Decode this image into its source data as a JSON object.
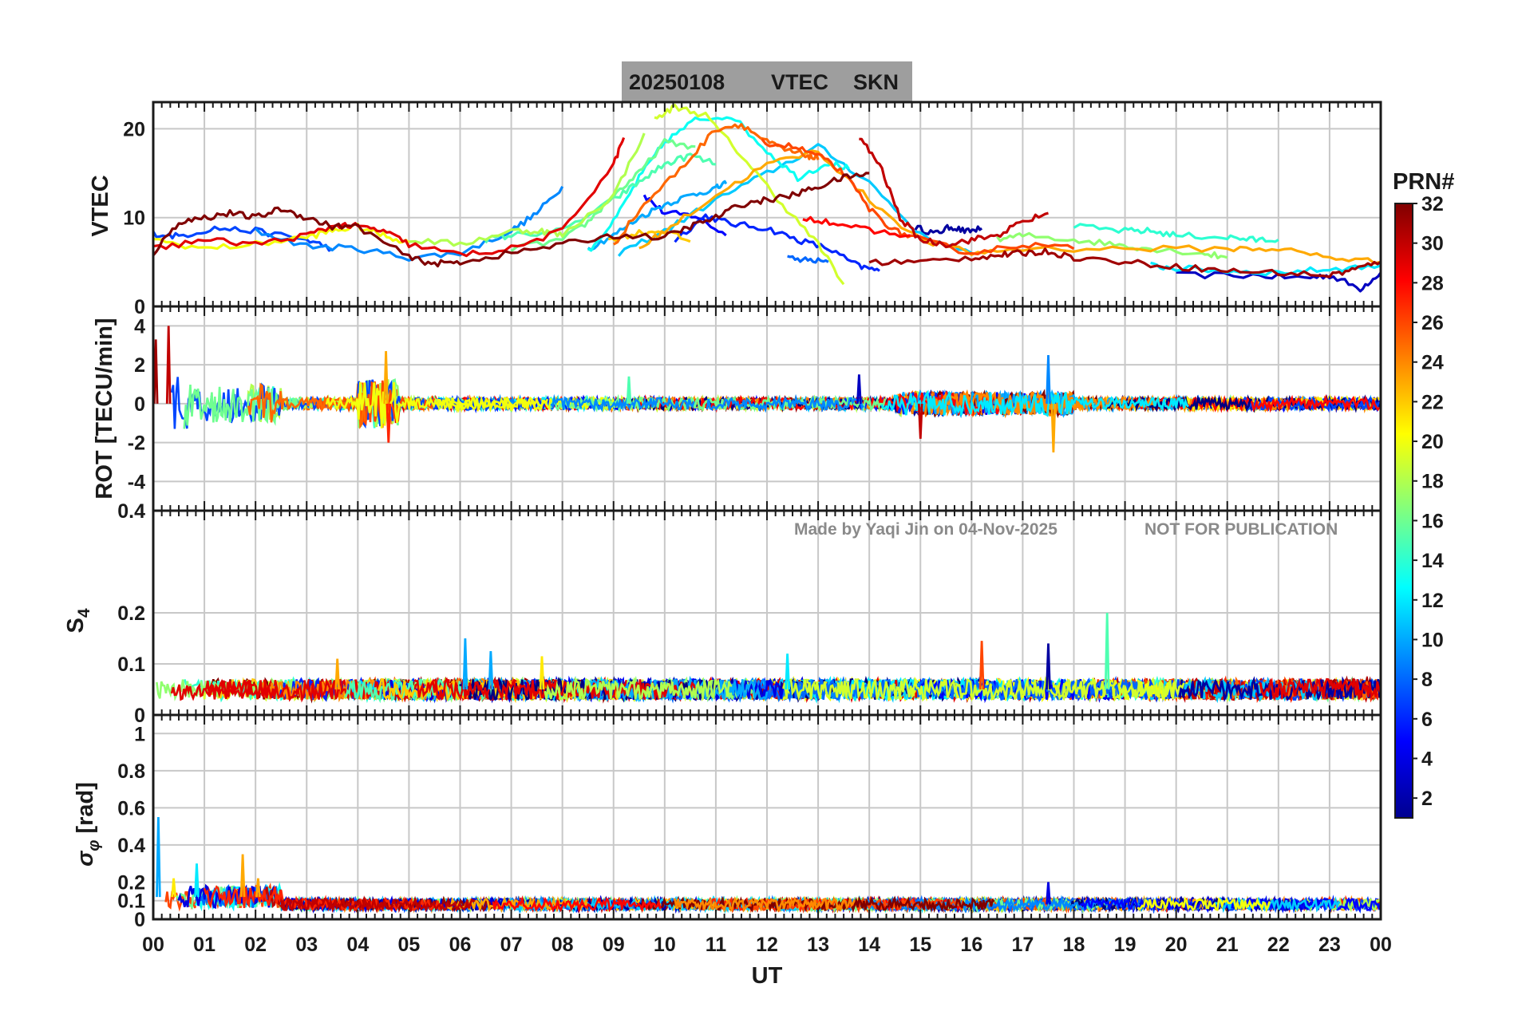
{
  "title": {
    "date": "20250108",
    "quantity": "VTEC",
    "station": "SKN"
  },
  "watermark": {
    "made_by": "Made by Yaqi Jin on 04-Nov-2025",
    "notice": "NOT FOR PUBLICATION"
  },
  "colors": {
    "title_box": "#9e9e9e",
    "grid": "#c8c8c8",
    "axis": "#1a1a1a"
  },
  "chart_data": {
    "type": "line",
    "x_axis": {
      "label": "UT",
      "range": [
        0,
        24
      ],
      "tick_labels": [
        "00",
        "01",
        "02",
        "03",
        "04",
        "05",
        "06",
        "07",
        "08",
        "09",
        "10",
        "11",
        "12",
        "13",
        "14",
        "15",
        "16",
        "17",
        "18",
        "19",
        "20",
        "21",
        "22",
        "23",
        "00"
      ]
    },
    "panels": [
      {
        "id": "vtec",
        "ylabel": "VTEC",
        "ylim": [
          0,
          23
        ],
        "yticks": [
          0,
          10,
          20
        ],
        "ytick_labels": [
          "0",
          "10",
          "20"
        ],
        "series": [
          {
            "prn": 2,
            "x": [
              14.9,
              15.3,
              15.6,
              15.9,
              16.2
            ],
            "y": [
              8.9,
              8.2,
              9.0,
              8.4,
              8.8
            ]
          },
          {
            "prn": 3,
            "x": [
              20.0,
              21.5,
              22.5,
              23.0,
              23.6,
              24.0
            ],
            "y": [
              3.5,
              3.5,
              3.2,
              3.5,
              2.0,
              3.8
            ]
          },
          {
            "prn": 5,
            "x": [
              9.6,
              10.0,
              10.6,
              11.2
            ],
            "y": [
              12.5,
              10.5,
              10.2,
              8.0
            ]
          },
          {
            "prn": 6,
            "x": [
              10.2,
              10.8,
              11.3,
              12.0,
              12.6,
              13.2,
              13.8,
              14.2
            ],
            "y": [
              7.5,
              10.2,
              9.3,
              8.8,
              7.5,
              6.5,
              4.5,
              4.0
            ]
          },
          {
            "prn": 7,
            "x": [
              0.0,
              0.5,
              1.2,
              2.0,
              3.0,
              3.5
            ],
            "y": [
              8.2,
              7.9,
              8.8,
              8.5,
              7.5,
              6.5
            ]
          },
          {
            "prn": 8,
            "x": [
              12.4,
              12.8,
              13.2
            ],
            "y": [
              5.4,
              5.2,
              5.0
            ]
          },
          {
            "prn": 9,
            "x": [
              2.0,
              3.0,
              4.0,
              5.0,
              6.0,
              7.0,
              7.5,
              8.0
            ],
            "y": [
              8.5,
              6.8,
              6.5,
              5.5,
              6.0,
              8.5,
              10.5,
              13.5
            ]
          },
          {
            "prn": 10,
            "x": [
              8.5,
              9.0,
              9.5,
              10.0,
              10.5,
              11.0,
              11.2
            ],
            "y": [
              6.5,
              8.0,
              10.0,
              11.5,
              12.5,
              13.3,
              13.8
            ]
          },
          {
            "prn": 11,
            "x": [
              9.1,
              10.0,
              11.0,
              12.0,
              13.0,
              14.0,
              15.0,
              16.0
            ],
            "y": [
              6.0,
              8.5,
              12.0,
              15.0,
              18.0,
              14.0,
              8.0,
              6.0
            ]
          },
          {
            "prn": 12,
            "x": [
              19.5,
              20.0,
              21.0,
              22.0,
              23.0,
              24.0
            ],
            "y": [
              4.6,
              4.3,
              4.0,
              3.8,
              4.2,
              4.6
            ]
          },
          {
            "prn": 13,
            "x": [
              8.5,
              9.0,
              9.5,
              10.0,
              10.6,
              11.3,
              12.0,
              12.6,
              13.2,
              13.6
            ],
            "y": [
              6.2,
              9.5,
              14.5,
              18.5,
              21.0,
              21.5,
              17.5,
              14.5,
              16.2,
              15.5
            ]
          },
          {
            "prn": 14,
            "x": [
              18.0,
              19.0,
              19.5,
              20.0,
              21.0,
              21.5,
              22.0
            ],
            "y": [
              9.0,
              8.5,
              8.5,
              8.0,
              7.8,
              7.5,
              7.5
            ]
          },
          {
            "prn": 15,
            "x": [
              6.5,
              7.0,
              8.0,
              9.0,
              9.5,
              10.0,
              10.5,
              11.0
            ],
            "y": [
              7.5,
              8.0,
              8.5,
              12.0,
              14.0,
              16.0,
              17.0,
              16.0
            ]
          },
          {
            "prn": 16,
            "x": [
              7.0,
              8.0,
              8.5,
              9.0,
              9.5,
              10.0,
              10.6
            ],
            "y": [
              6.5,
              7.5,
              9.5,
              12.5,
              15.0,
              18.5,
              18.0
            ]
          },
          {
            "prn": 17,
            "x": [
              16.5,
              17.0,
              18.0,
              18.8,
              19.5,
              20.5,
              21.0
            ],
            "y": [
              7.5,
              8.0,
              7.5,
              7.0,
              6.5,
              6.0,
              5.5
            ]
          },
          {
            "prn": 18,
            "x": [
              5.0,
              6.0,
              7.0,
              7.6,
              8.0,
              9.0,
              9.6
            ],
            "y": [
              7.5,
              7.0,
              8.5,
              8.5,
              8.0,
              12.5,
              19.5
            ]
          },
          {
            "prn": 19,
            "x": [
              9.8,
              10.2,
              10.8,
              11.5,
              12.3,
              13.0,
              13.5
            ],
            "y": [
              21.0,
              22.5,
              21.5,
              17.0,
              11.5,
              7.0,
              2.5
            ]
          },
          {
            "prn": 20,
            "x": [
              0.0,
              1.0,
              2.0,
              3.0,
              3.5,
              4.0,
              4.5,
              5.0
            ],
            "y": [
              7.5,
              6.5,
              7.0,
              7.8,
              8.5,
              9.0,
              8.0,
              7.2
            ]
          },
          {
            "prn": 22,
            "x": [
              8.9,
              9.5,
              10.0,
              10.5
            ],
            "y": [
              7.5,
              8.3,
              8.5,
              7.3
            ]
          },
          {
            "prn": 23,
            "x": [
              9.5,
              10.0,
              11.0,
              12.0,
              13.0,
              14.0,
              15.0,
              16.0,
              17.0,
              19.0,
              21.0,
              22.0,
              23.0,
              24.0
            ],
            "y": [
              6.5,
              8.5,
              12.5,
              16.0,
              17.5,
              12.0,
              7.5,
              6.0,
              6.5,
              6.5,
              6.5,
              6.5,
              5.5,
              5.0
            ]
          },
          {
            "prn": 25,
            "x": [
              9.0,
              9.6,
              10.4,
              11.0,
              11.5,
              12.0,
              12.4,
              12.8,
              13.0
            ],
            "y": [
              7.0,
              11.5,
              16.0,
              20.0,
              20.5,
              18.5,
              17.5,
              17.0,
              16.5
            ]
          },
          {
            "prn": 26,
            "x": [
              11.9,
              12.5,
              13.0,
              13.5,
              14.0,
              14.5,
              15.0,
              16.0,
              17.0,
              18.0
            ],
            "y": [
              18.5,
              18.0,
              17.0,
              15.0,
              11.0,
              8.5,
              7.5,
              6.0,
              7.0,
              6.5
            ]
          },
          {
            "prn": 28,
            "x": [
              12.7,
              13.3,
              14.0,
              14.8
            ],
            "y": [
              10.0,
              9.5,
              8.5,
              8.0
            ]
          },
          {
            "prn": 29,
            "x": [
              0.0,
              1.0,
              2.0,
              3.0,
              3.6,
              4.0,
              4.5,
              5.0,
              6.0,
              7.0,
              8.0,
              9.0,
              9.2
            ],
            "y": [
              6.5,
              7.5,
              7.0,
              8.0,
              9.2,
              9.0,
              8.5,
              7.0,
              5.8,
              6.5,
              8.5,
              16.0,
              19.0
            ]
          },
          {
            "prn": 30,
            "x": [
              13.8,
              14.2,
              14.6,
              15.0,
              15.5,
              16.0,
              16.5,
              17.0,
              17.5
            ],
            "y": [
              19.0,
              16.0,
              10.0,
              7.5,
              7.0,
              7.5,
              8.0,
              9.5,
              10.5
            ]
          },
          {
            "prn": 31,
            "x": [
              14.0,
              15.0,
              16.0,
              16.6,
              17.0,
              17.5,
              18.0,
              19.0,
              20.0,
              21.0,
              22.0,
              23.0,
              23.5,
              24.0
            ],
            "y": [
              5.0,
              5.0,
              5.5,
              5.8,
              6.0,
              6.2,
              5.5,
              5.0,
              4.5,
              4.0,
              3.8,
              3.5,
              4.2,
              5.0
            ]
          },
          {
            "prn": 32,
            "x": [
              0.0,
              0.5,
              1.0,
              1.5,
              2.0,
              2.5,
              3.0,
              3.5,
              4.0,
              5.0,
              5.5,
              6.0,
              7.0,
              8.0,
              9.0,
              10.0,
              10.5,
              11.0,
              11.5,
              12.0,
              12.5,
              13.0,
              13.5,
              14.0
            ],
            "y": [
              6.0,
              9.5,
              10.0,
              10.5,
              10.0,
              11.0,
              10.0,
              9.0,
              9.0,
              5.5,
              4.8,
              5.0,
              6.0,
              7.0,
              8.0,
              7.8,
              9.0,
              10.0,
              11.5,
              12.0,
              12.5,
              13.5,
              14.5,
              15.0
            ]
          }
        ]
      },
      {
        "id": "rot",
        "ylabel": "ROT [TECU/min]",
        "ylim": [
          -5.5,
          5.0
        ],
        "yticks": [
          -4,
          -2,
          0,
          2,
          4
        ],
        "ytick_labels": [
          "-4",
          "-2",
          "0",
          "2",
          "4"
        ],
        "notable_spikes": [
          {
            "x": 0.3,
            "y": 4.0
          },
          {
            "x": 0.05,
            "y": 3.3
          },
          {
            "x": 4.55,
            "y": 2.7
          },
          {
            "x": 4.6,
            "y": -2.0
          },
          {
            "x": 17.6,
            "y": -2.5
          },
          {
            "x": 17.5,
            "y": 2.5
          },
          {
            "x": 13.8,
            "y": 1.5
          },
          {
            "x": 15.0,
            "y": -1.8
          },
          {
            "x": 9.3,
            "y": 1.4
          }
        ]
      },
      {
        "id": "s4",
        "ylabel": "S4",
        "ylim": [
          0,
          0.4
        ],
        "yticks": [
          0,
          0.1,
          0.2,
          0.4
        ],
        "ytick_labels": [
          "0",
          "0.1",
          "0.2",
          "0.4"
        ],
        "baseline": 0.05,
        "notable_spikes": [
          {
            "x": 18.65,
            "y": 0.2
          },
          {
            "x": 6.1,
            "y": 0.15
          },
          {
            "x": 16.2,
            "y": 0.145
          },
          {
            "x": 17.5,
            "y": 0.14
          },
          {
            "x": 6.6,
            "y": 0.125
          },
          {
            "x": 12.4,
            "y": 0.12
          },
          {
            "x": 7.6,
            "y": 0.115
          },
          {
            "x": 3.6,
            "y": 0.11
          }
        ]
      },
      {
        "id": "sigma_phi",
        "ylabel": "σ_φ [rad]",
        "ylim": [
          0,
          1.1
        ],
        "yticks": [
          0,
          0.1,
          0.2,
          0.4,
          0.6,
          0.8,
          1
        ],
        "ytick_labels": [
          "0",
          "0.1",
          "0.2",
          "0.4",
          "0.6",
          "0.8",
          "1"
        ],
        "baseline": 0.08,
        "notable_spikes": [
          {
            "x": 0.1,
            "y": 0.55
          },
          {
            "x": 1.75,
            "y": 0.35
          },
          {
            "x": 0.85,
            "y": 0.3
          },
          {
            "x": 2.05,
            "y": 0.22
          },
          {
            "x": 0.4,
            "y": 0.22
          },
          {
            "x": 17.5,
            "y": 0.2
          }
        ]
      }
    ],
    "colorbar": {
      "title": "PRN#",
      "range": [
        1,
        32
      ],
      "tick_labels": [
        "2",
        "4",
        "6",
        "8",
        "10",
        "12",
        "14",
        "16",
        "18",
        "20",
        "22",
        "24",
        "26",
        "28",
        "30",
        "32"
      ],
      "colormap": "jet"
    }
  }
}
